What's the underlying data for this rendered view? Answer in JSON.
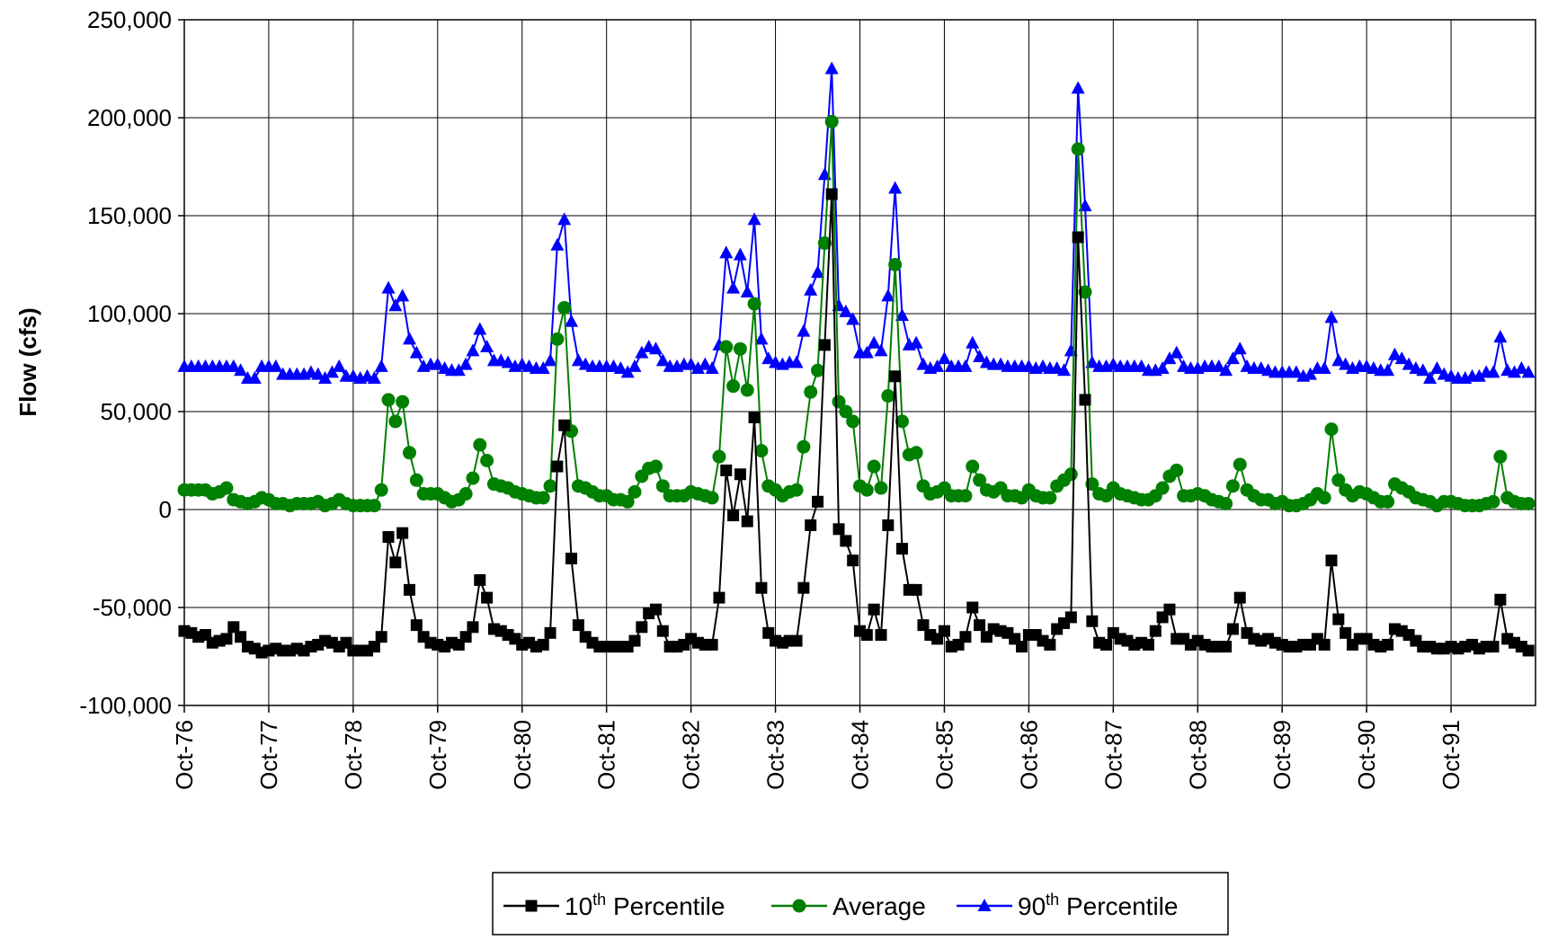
{
  "chart_data": {
    "type": "line",
    "title": "",
    "xlabel": "",
    "ylabel": "Flow (cfs)",
    "ylim": [
      -100000,
      250000
    ],
    "yticks": [
      -100000,
      -50000,
      0,
      50000,
      100000,
      150000,
      200000,
      250000
    ],
    "ytick_labels": [
      "-100,000",
      "-50,000",
      "0",
      "50,000",
      "100,000",
      "150,000",
      "200,000",
      "250,000"
    ],
    "x_start": "Oct-76",
    "x_end": "Sep-92",
    "xtick_labels": [
      "Oct-76",
      "Oct-77",
      "Oct-78",
      "Oct-79",
      "Oct-80",
      "Oct-81",
      "Oct-82",
      "Oct-83",
      "Oct-84",
      "Oct-85",
      "Oct-86",
      "Oct-87",
      "Oct-88",
      "Oct-89",
      "Oct-90",
      "Oct-91"
    ],
    "grid": true,
    "legend_position": "bottom-center",
    "series": [
      {
        "name": "10th Percentile",
        "name_base": "10",
        "name_sup": "th",
        "name_rest": " Percentile",
        "color": "#000000",
        "marker": "square",
        "values": [
          -62000,
          -63000,
          -65000,
          -64000,
          -68000,
          -67000,
          -66000,
          -60000,
          -65000,
          -70000,
          -71000,
          -73000,
          -72000,
          -71000,
          -72000,
          -72000,
          -71000,
          -72000,
          -70000,
          -69000,
          -67000,
          -68000,
          -70000,
          -68000,
          -72000,
          -72000,
          -72000,
          -70000,
          -65000,
          -14000,
          -27000,
          -12000,
          -41000,
          -59000,
          -65000,
          -68000,
          -69000,
          -70000,
          -68000,
          -69000,
          -65000,
          -60000,
          -36000,
          -45000,
          -61000,
          -62000,
          -64000,
          -66000,
          -69000,
          -68000,
          -70000,
          -69000,
          -63000,
          22000,
          43000,
          -25000,
          -59000,
          -65000,
          -68000,
          -70000,
          -70000,
          -70000,
          -70000,
          -70000,
          -67000,
          -60000,
          -53000,
          -51000,
          -62000,
          -70000,
          -70000,
          -69000,
          -66000,
          -68000,
          -69000,
          -69000,
          -45000,
          20000,
          -3000,
          18000,
          -6000,
          47000,
          -40000,
          -63000,
          -67000,
          -68000,
          -67000,
          -67000,
          -40000,
          -8000,
          4000,
          84000,
          161000,
          -10000,
          -16000,
          -26000,
          -62000,
          -64000,
          -51000,
          -64000,
          -8000,
          68000,
          -20000,
          -41000,
          -41000,
          -59000,
          -64000,
          -66000,
          -62000,
          -70000,
          -69000,
          -65000,
          -50000,
          -59000,
          -65000,
          -61000,
          -62000,
          -63000,
          -66000,
          -70000,
          -64000,
          -64000,
          -67000,
          -69000,
          -61000,
          -58000,
          -55000,
          139000,
          56000,
          -57000,
          -68000,
          -69000,
          -63000,
          -66000,
          -67000,
          -69000,
          -68000,
          -69000,
          -62000,
          -55000,
          -51000,
          -66000,
          -66000,
          -69000,
          -67000,
          -69000,
          -70000,
          -70000,
          -70000,
          -61000,
          -45000,
          -63000,
          -66000,
          -67000,
          -66000,
          -68000,
          -69000,
          -70000,
          -70000,
          -69000,
          -69000,
          -66000,
          -69000,
          -26000,
          -56000,
          -63000,
          -69000,
          -66000,
          -66000,
          -69000,
          -70000,
          -69000,
          -61000,
          -62000,
          -64000,
          -67000,
          -70000,
          -70000,
          -71000,
          -71000,
          -70000,
          -71000,
          -70000,
          -69000,
          -71000,
          -70000,
          -70000,
          -46000,
          -66000,
          -68000,
          -70000,
          -72000
        ]
      },
      {
        "name": "Average",
        "color": "#008000",
        "marker": "circle",
        "values": [
          10000,
          10000,
          10000,
          10000,
          8000,
          9000,
          11000,
          5000,
          4000,
          3000,
          4000,
          6000,
          5000,
          3000,
          3000,
          2000,
          3000,
          3000,
          3000,
          4000,
          2000,
          3000,
          5000,
          3000,
          2000,
          2000,
          2000,
          2000,
          10000,
          56000,
          45000,
          55000,
          29000,
          15000,
          8000,
          8000,
          8000,
          6000,
          4000,
          5000,
          8000,
          16000,
          33000,
          25000,
          13000,
          12000,
          11000,
          9000,
          8000,
          7000,
          6000,
          6000,
          12000,
          87000,
          103000,
          40000,
          12000,
          11000,
          9000,
          7000,
          7000,
          5000,
          5000,
          4000,
          9000,
          17000,
          21000,
          22000,
          12000,
          7000,
          7000,
          7000,
          9000,
          8000,
          7000,
          6000,
          27000,
          83000,
          63000,
          82000,
          61000,
          105000,
          30000,
          12000,
          10000,
          7000,
          9000,
          10000,
          32000,
          60000,
          71000,
          136000,
          198000,
          55000,
          50000,
          45000,
          12000,
          10000,
          22000,
          11000,
          58000,
          125000,
          45000,
          28000,
          29000,
          12000,
          8000,
          9000,
          11000,
          7000,
          7000,
          7000,
          22000,
          15000,
          10000,
          9000,
          11000,
          7000,
          7000,
          6000,
          10000,
          7000,
          6000,
          6000,
          12000,
          15000,
          18000,
          184000,
          111000,
          13000,
          8000,
          7000,
          11000,
          8000,
          7000,
          6000,
          5000,
          5000,
          7000,
          11000,
          17000,
          20000,
          7000,
          7000,
          8000,
          7000,
          5000,
          4000,
          3000,
          12000,
          23000,
          10000,
          7000,
          5000,
          5000,
          3000,
          4000,
          2000,
          2000,
          3000,
          5000,
          8000,
          6000,
          41000,
          15000,
          10000,
          7000,
          9000,
          8000,
          6000,
          4000,
          4000,
          13000,
          11000,
          9000,
          6000,
          5000,
          4000,
          2000,
          4000,
          4000,
          3000,
          2000,
          2000,
          2000,
          3000,
          4000,
          27000,
          6000,
          4000,
          3000,
          3000
        ]
      },
      {
        "name": "90th Percentile",
        "name_base": "90",
        "name_sup": "th",
        "name_rest": " Percentile",
        "color": "#0000FF",
        "marker": "triangle",
        "values": [
          73000,
          73000,
          73000,
          73000,
          73000,
          73000,
          73000,
          73000,
          71000,
          67000,
          67000,
          73000,
          73000,
          73000,
          69000,
          69000,
          69000,
          69000,
          70000,
          69000,
          67000,
          70000,
          73000,
          68000,
          68000,
          67000,
          68000,
          67000,
          73000,
          113000,
          104000,
          109000,
          87000,
          80000,
          73000,
          74000,
          74000,
          72000,
          71000,
          71000,
          74000,
          81000,
          92000,
          83000,
          76000,
          76000,
          75000,
          73000,
          74000,
          73000,
          72000,
          72000,
          76000,
          135000,
          148000,
          96000,
          76000,
          74000,
          73000,
          73000,
          73000,
          73000,
          72000,
          70000,
          73000,
          80000,
          83000,
          82000,
          76000,
          73000,
          73000,
          74000,
          74000,
          72000,
          74000,
          72000,
          84000,
          131000,
          113000,
          130000,
          111000,
          148000,
          87000,
          77000,
          75000,
          74000,
          75000,
          75000,
          91000,
          112000,
          121000,
          171000,
          225000,
          104000,
          101000,
          97000,
          80000,
          80000,
          85000,
          81000,
          109000,
          164000,
          99000,
          84000,
          85000,
          74000,
          72000,
          73000,
          77000,
          73000,
          73000,
          73000,
          85000,
          78000,
          75000,
          74000,
          74000,
          73000,
          73000,
          73000,
          73000,
          72000,
          73000,
          72000,
          72000,
          71000,
          81000,
          215000,
          155000,
          75000,
          73000,
          73000,
          74000,
          73000,
          73000,
          73000,
          73000,
          71000,
          71000,
          72000,
          77000,
          80000,
          73000,
          72000,
          72000,
          73000,
          73000,
          73000,
          71000,
          77000,
          82000,
          73000,
          72000,
          72000,
          71000,
          70000,
          70000,
          70000,
          70000,
          68000,
          69000,
          72000,
          72000,
          98000,
          76000,
          74000,
          72000,
          73000,
          73000,
          72000,
          71000,
          71000,
          79000,
          77000,
          74000,
          72000,
          71000,
          67000,
          72000,
          69000,
          68000,
          67000,
          67000,
          68000,
          68000,
          70000,
          70000,
          88000,
          71000,
          70000,
          72000,
          70000
        ]
      }
    ]
  }
}
